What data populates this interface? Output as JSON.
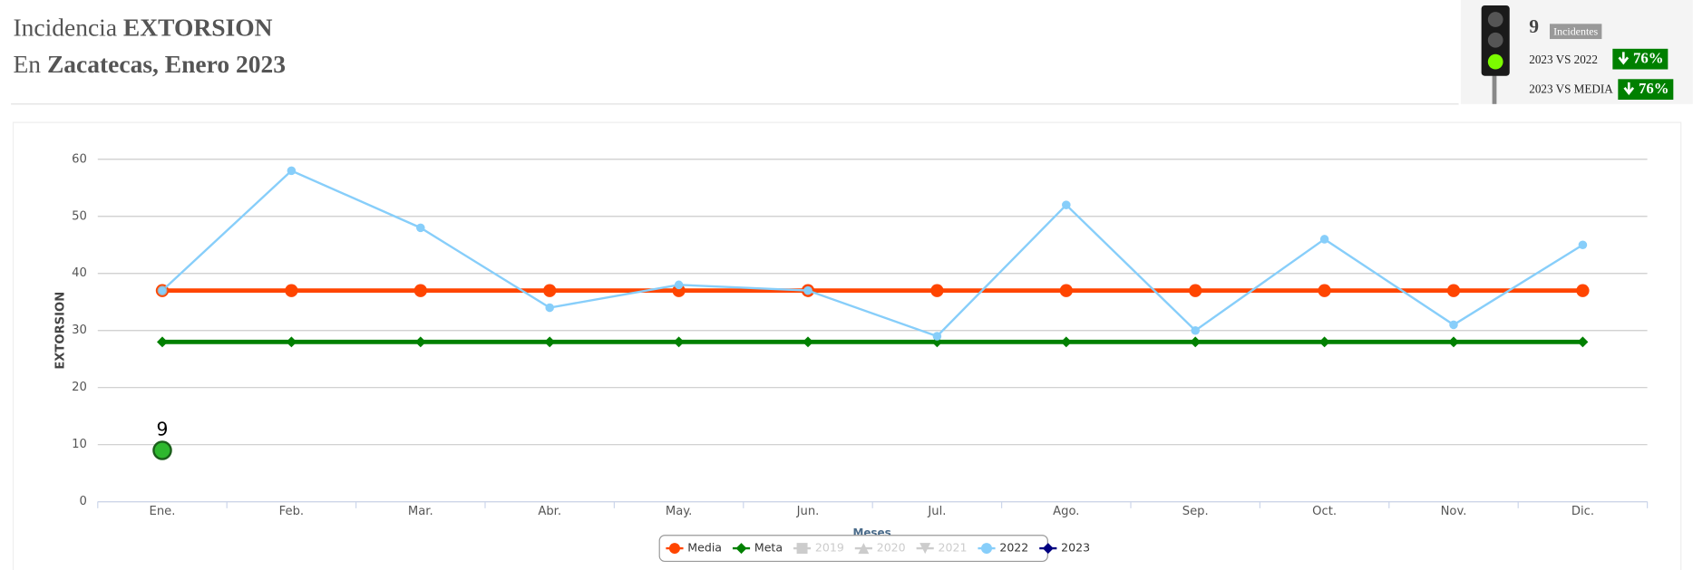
{
  "header": {
    "title_prefix": "Incidencia",
    "title_crime": "EXTORSION",
    "place_prefix": "En",
    "place": "Zacatecas",
    "period": ", Enero 2023"
  },
  "panel": {
    "count": 9,
    "count_label": "Incidentes",
    "comparisons": [
      {
        "label": "2023 VS 2022",
        "change": "76%"
      },
      {
        "label": "2023 VS MEDIA",
        "change": "76%"
      }
    ]
  },
  "chart_data": {
    "type": "line",
    "y_label": "EXTORSION",
    "x_label": "Meses",
    "categories": [
      "Ene.",
      "Feb.",
      "Mar.",
      "Abr.",
      "May.",
      "Jun.",
      "Jul.",
      "Ago.",
      "Sep.",
      "Oct.",
      "Nov.",
      "Dic."
    ],
    "ylim": [
      0,
      60
    ],
    "yticks": [
      0,
      10,
      20,
      30,
      40,
      50,
      60
    ],
    "grid": true,
    "series": [
      {
        "name": "Media",
        "color": "#ff4500",
        "marker": "circle",
        "line_width": 4,
        "values": [
          37,
          37,
          37,
          37,
          37,
          37,
          37,
          37,
          37,
          37,
          37,
          37
        ]
      },
      {
        "name": "Meta",
        "color": "#008000",
        "marker": "diamond",
        "line_width": 4,
        "values": [
          28,
          28,
          28,
          28,
          28,
          28,
          28,
          28,
          28,
          28,
          28,
          28
        ]
      },
      {
        "name": "2019",
        "color": "#cccccc",
        "marker": "square",
        "hidden": true,
        "values": [
          null,
          null,
          null,
          null,
          null,
          null,
          null,
          null,
          null,
          null,
          null,
          null
        ]
      },
      {
        "name": "2020",
        "color": "#cccccc",
        "marker": "triangle",
        "hidden": true,
        "values": [
          null,
          null,
          null,
          null,
          null,
          null,
          null,
          null,
          null,
          null,
          null,
          null
        ]
      },
      {
        "name": "2021",
        "color": "#cccccc",
        "marker": "triangle-down",
        "hidden": true,
        "values": [
          null,
          null,
          null,
          null,
          null,
          null,
          null,
          null,
          null,
          null,
          null,
          null
        ]
      },
      {
        "name": "2022",
        "color": "#87cefa",
        "marker": "circle",
        "line_width": 2,
        "values": [
          37,
          58,
          48,
          34,
          38,
          37,
          29,
          52,
          30,
          46,
          31,
          45
        ]
      },
      {
        "name": "2023",
        "color": "#000080",
        "marker": "diamond",
        "point_color": "#2eb82e",
        "data_labels": true,
        "line_width": 2,
        "values": [
          9,
          null,
          null,
          null,
          null,
          null,
          null,
          null,
          null,
          null,
          null,
          null
        ]
      }
    ]
  }
}
